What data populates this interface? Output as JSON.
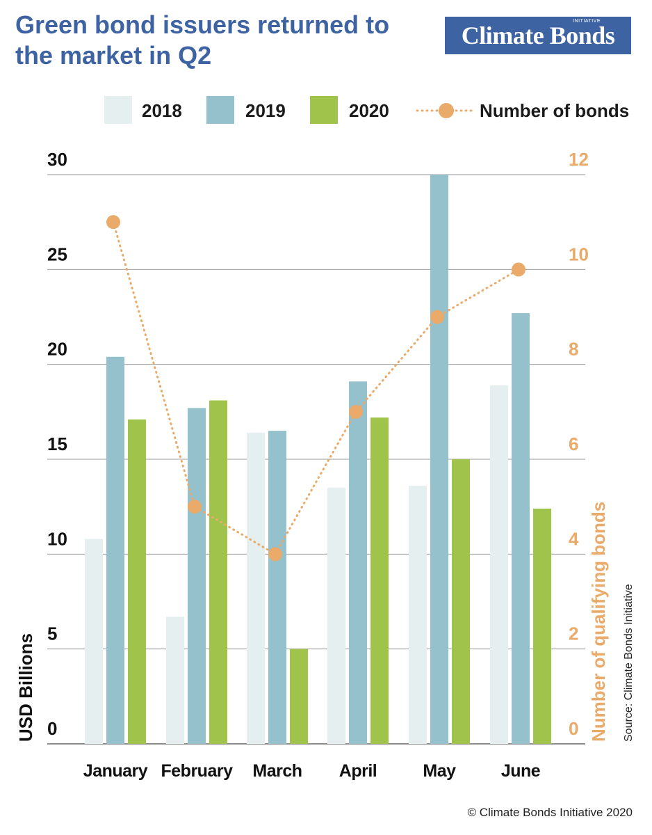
{
  "header": {
    "title_lines": [
      "Green bond issuers returned to",
      "the market in Q2"
    ]
  },
  "logo": {
    "name": "Climate Bonds",
    "tag": "INITIATIVE",
    "bg_color": "#3d63a3"
  },
  "legend": {
    "items": [
      {
        "label": "2018",
        "color": "#e5efef"
      },
      {
        "label": "2019",
        "color": "#94c1cc"
      },
      {
        "label": "2020",
        "color": "#a0c44b"
      },
      {
        "label": "Number of bonds",
        "color": "#e9aa6a"
      }
    ]
  },
  "source_note": "Source: Climate Bonds Initiative",
  "copyright": "© Climate Bonds Initiative 2020",
  "chart_data": {
    "type": "bar",
    "categories": [
      "January",
      "February",
      "March",
      "April",
      "May",
      "June"
    ],
    "series": [
      {
        "name": "2018",
        "values": [
          10.8,
          6.7,
          16.4,
          13.5,
          13.6,
          18.9
        ],
        "color": "#e5efef"
      },
      {
        "name": "2019",
        "values": [
          20.4,
          17.7,
          16.5,
          19.1,
          30.0,
          22.7
        ],
        "color": "#94c1cc"
      },
      {
        "name": "2020",
        "values": [
          17.1,
          18.1,
          5.0,
          17.2,
          15.0,
          12.4
        ],
        "color": "#a0c44b"
      }
    ],
    "line_series": {
      "name": "Number of bonds",
      "values": [
        11,
        5,
        4,
        7,
        9,
        10
      ],
      "color": "#e9aa6a",
      "axis": "right"
    },
    "ylabel": "USD Billions",
    "ylabel_right": "Number of qualifying bonds",
    "ylim": [
      0,
      30
    ],
    "ylim_right": [
      0,
      12
    ],
    "yticks": [
      0,
      5,
      10,
      15,
      20,
      25,
      30
    ],
    "yticks_right": [
      0,
      2,
      4,
      6,
      8,
      10,
      12
    ],
    "grid": true,
    "legend_position": "top"
  }
}
